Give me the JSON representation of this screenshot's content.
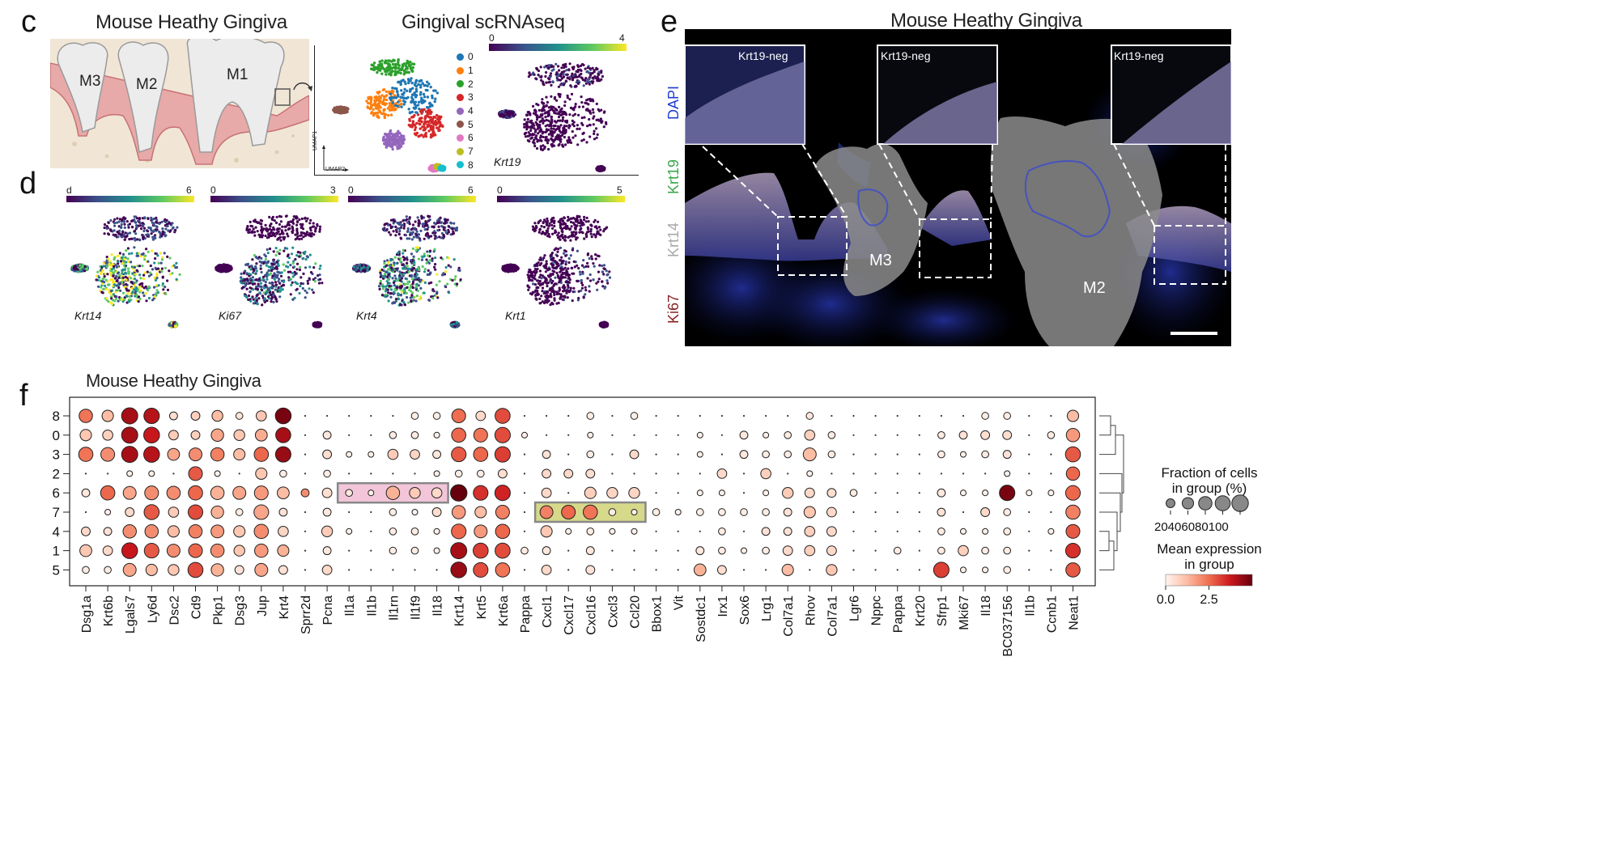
{
  "panels": {
    "c": {
      "letter": "c",
      "title_left": "Mouse Heathy Gingiva",
      "title_right": "Gingival scRNAseq",
      "tooth_labels": [
        "M3",
        "M2",
        "M1"
      ],
      "umap_axis": {
        "y": "UMAP1",
        "x": "UMAP2"
      },
      "clusters": [
        {
          "id": "0",
          "color": "#1f77b4"
        },
        {
          "id": "1",
          "color": "#ff7f0e"
        },
        {
          "id": "2",
          "color": "#2ca02c"
        },
        {
          "id": "3",
          "color": "#d62728"
        },
        {
          "id": "4",
          "color": "#9467bd"
        },
        {
          "id": "5",
          "color": "#8c564b"
        },
        {
          "id": "6",
          "color": "#e377c2"
        },
        {
          "id": "7",
          "color": "#bcbd22"
        },
        {
          "id": "8",
          "color": "#17becf"
        }
      ],
      "krt19": {
        "gene": "Krt19",
        "min": "0",
        "max": "4"
      }
    },
    "d": {
      "letter": "d",
      "plots": [
        {
          "gene": "Krt14",
          "min": "d",
          "max": "6"
        },
        {
          "gene": "Ki67",
          "min": "0",
          "max": "3"
        },
        {
          "gene": "Krt4",
          "min": "0",
          "max": "6"
        },
        {
          "gene": "Krt1",
          "min": "0",
          "max": "5"
        }
      ]
    },
    "e": {
      "letter": "e",
      "title": "Mouse Heathy Gingiva",
      "channels": [
        {
          "name": "DAPI",
          "color": "#1f3fd0"
        },
        {
          "name": "Krt19",
          "color": "#3aa84a"
        },
        {
          "name": "Krt14",
          "color": "#a8a8a8"
        },
        {
          "name": "Ki67",
          "color": "#8a1f1f"
        }
      ],
      "insets": [
        "Krt19-neg",
        "Krt19-neg",
        "Krt19-neg"
      ],
      "regions": [
        "M3",
        "M2"
      ]
    },
    "f": {
      "letter": "f",
      "title": "Mouse Heathy Gingiva"
    }
  },
  "chart_data": {
    "type": "dotplot",
    "title": "Mouse Heathy Gingiva",
    "rows": [
      "8",
      "0",
      "3",
      "2",
      "6",
      "7",
      "4",
      "1",
      "5"
    ],
    "genes": [
      "Dsg1a",
      "Krt6b",
      "Lgals7",
      "Ly6d",
      "Dsc2",
      "Cd9",
      "Pkp1",
      "Dsg3",
      "Jup",
      "Krt4",
      "Sprr2d",
      "Pcna",
      "Il1a",
      "Il1b",
      "Il1rn",
      "Il1f9",
      "Il18",
      "Krt14",
      "Krt5",
      "Krt6a",
      "Pappa",
      "Cxcl1",
      "Cxcl17",
      "Cxcl16",
      "Cxcl3",
      "Ccl20",
      "Bbox1",
      "Vit",
      "Sostdc1",
      "Irx1",
      "Sox6",
      "Lrg1",
      "Col7a1",
      "Rhov",
      "Col7a1",
      "Lgr6",
      "Nppc",
      "Pappa",
      "Krt20",
      "Sfrp1",
      "Mki67",
      "Il18",
      "BC037156",
      "Il1b",
      "Ccnb1",
      "Neat1"
    ],
    "fraction": [
      [
        60,
        40,
        95,
        85,
        15,
        20,
        35,
        10,
        30,
        90,
        0,
        0,
        0,
        0,
        0,
        10,
        10,
        65,
        25,
        80,
        0,
        0,
        0,
        10,
        0,
        10,
        0,
        0,
        0,
        0,
        0,
        0,
        0,
        10,
        0,
        0,
        0,
        0,
        0,
        0,
        0,
        10,
        10,
        0,
        0,
        40
      ],
      [
        40,
        30,
        95,
        90,
        25,
        20,
        50,
        35,
        45,
        80,
        0,
        15,
        0,
        0,
        10,
        10,
        5,
        70,
        65,
        85,
        5,
        0,
        0,
        5,
        0,
        0,
        0,
        0,
        5,
        0,
        15,
        5,
        10,
        30,
        10,
        0,
        0,
        0,
        0,
        10,
        15,
        20,
        20,
        0,
        10,
        60
      ],
      [
        70,
        65,
        95,
        90,
        45,
        55,
        60,
        40,
        70,
        85,
        0,
        20,
        5,
        5,
        30,
        25,
        15,
        75,
        70,
        85,
        0,
        15,
        0,
        10,
        0,
        20,
        0,
        0,
        5,
        0,
        15,
        10,
        10,
        55,
        10,
        0,
        0,
        0,
        0,
        10,
        5,
        10,
        15,
        0,
        0,
        80
      ],
      [
        0,
        0,
        5,
        5,
        0,
        65,
        5,
        0,
        40,
        10,
        0,
        10,
        0,
        0,
        0,
        0,
        5,
        10,
        10,
        20,
        0,
        20,
        20,
        20,
        0,
        0,
        0,
        0,
        0,
        25,
        0,
        30,
        0,
        5,
        0,
        0,
        0,
        0,
        0,
        0,
        0,
        0,
        5,
        0,
        0,
        60
      ],
      [
        15,
        70,
        55,
        65,
        60,
        70,
        60,
        55,
        65,
        45,
        15,
        25,
        10,
        5,
        60,
        35,
        30,
        100,
        75,
        85,
        0,
        25,
        0,
        40,
        35,
        35,
        0,
        0,
        5,
        5,
        0,
        5,
        35,
        25,
        20,
        10,
        0,
        0,
        0,
        15,
        5,
        5,
        85,
        5,
        5,
        75
      ],
      [
        0,
        5,
        20,
        80,
        30,
        75,
        50,
        10,
        75,
        15,
        0,
        15,
        0,
        0,
        10,
        5,
        20,
        60,
        40,
        65,
        0,
        55,
        65,
        70,
        10,
        5,
        10,
        5,
        10,
        10,
        10,
        10,
        15,
        40,
        25,
        0,
        0,
        0,
        0,
        15,
        0,
        20,
        10,
        0,
        0,
        70
      ],
      [
        20,
        15,
        60,
        60,
        40,
        60,
        55,
        40,
        70,
        30,
        0,
        35,
        5,
        0,
        10,
        10,
        5,
        75,
        55,
        70,
        0,
        40,
        5,
        10,
        5,
        5,
        0,
        0,
        0,
        10,
        0,
        15,
        15,
        30,
        25,
        0,
        0,
        0,
        0,
        10,
        5,
        5,
        10,
        0,
        5,
        65
      ],
      [
        45,
        25,
        90,
        75,
        55,
        65,
        60,
        35,
        60,
        40,
        0,
        15,
        0,
        0,
        10,
        10,
        5,
        95,
        80,
        80,
        10,
        15,
        0,
        15,
        0,
        0,
        0,
        0,
        15,
        10,
        5,
        10,
        25,
        30,
        25,
        0,
        0,
        10,
        0,
        10,
        30,
        10,
        10,
        0,
        0,
        75
      ],
      [
        10,
        10,
        55,
        40,
        35,
        80,
        50,
        20,
        55,
        20,
        0,
        25,
        0,
        0,
        0,
        0,
        0,
        90,
        75,
        70,
        0,
        25,
        0,
        20,
        0,
        0,
        0,
        0,
        45,
        20,
        0,
        0,
        40,
        0,
        35,
        0,
        0,
        0,
        0,
        85,
        5,
        5,
        10,
        0,
        0,
        70
      ]
    ],
    "expression": [
      [
        2.4,
        1.2,
        4.2,
        4.0,
        0.5,
        0.8,
        1.2,
        0.4,
        1.0,
        4.8,
        0,
        0,
        0,
        0,
        0,
        0.2,
        0.2,
        2.5,
        0.6,
        3.0,
        0,
        0,
        0,
        0.2,
        0,
        0.2,
        0,
        0,
        0,
        0,
        0,
        0,
        0,
        0.3,
        0,
        0,
        0,
        0,
        0,
        0,
        0,
        0.2,
        0.2,
        0,
        0,
        1.2
      ],
      [
        1.0,
        0.8,
        4.2,
        3.8,
        0.9,
        0.8,
        1.6,
        1.0,
        1.5,
        4.2,
        0,
        0.3,
        0,
        0,
        0.2,
        0.2,
        0.1,
        2.6,
        2.4,
        3.0,
        0.1,
        0,
        0,
        0.1,
        0,
        0,
        0,
        0,
        0.1,
        0,
        0.3,
        0.1,
        0.2,
        0.8,
        0.2,
        0,
        0,
        0,
        0,
        0.2,
        0.4,
        0.5,
        0.5,
        0,
        0.2,
        1.8
      ],
      [
        2.4,
        2.0,
        4.2,
        4.0,
        1.6,
        2.0,
        2.2,
        1.2,
        2.6,
        4.4,
        0,
        0.5,
        0.1,
        0.1,
        0.9,
        0.7,
        0.3,
        2.8,
        2.6,
        3.2,
        0,
        0.4,
        0,
        0.2,
        0,
        0.6,
        0,
        0,
        0.1,
        0,
        0.3,
        0.2,
        0.2,
        1.2,
        0.2,
        0,
        0,
        0,
        0,
        0.2,
        0.1,
        0.2,
        0.4,
        0,
        0,
        2.8
      ],
      [
        0,
        0,
        0.1,
        0.1,
        0,
        2.8,
        0.1,
        0,
        1.0,
        0.2,
        0,
        0.2,
        0,
        0,
        0,
        0,
        0.1,
        0.2,
        0.2,
        0.5,
        0,
        0.6,
        0.6,
        0.5,
        0,
        0,
        0,
        0,
        0,
        0.6,
        0,
        0.8,
        0,
        0.1,
        0,
        0,
        0,
        0,
        0,
        0,
        0,
        0,
        0.1,
        0,
        0,
        2.6
      ],
      [
        0.3,
        2.6,
        1.6,
        2.0,
        2.0,
        2.6,
        1.4,
        1.6,
        1.8,
        1.2,
        2.0,
        0.5,
        0.3,
        0.1,
        1.4,
        0.9,
        0.6,
        5.0,
        3.4,
        3.6,
        0,
        0.6,
        0,
        0.8,
        0.7,
        0.7,
        0,
        0,
        0.1,
        0.1,
        0,
        0.1,
        0.9,
        0.6,
        0.5,
        0.2,
        0,
        0,
        0,
        0.3,
        0.1,
        0.1,
        4.8,
        0.1,
        0.1,
        2.6
      ],
      [
        0,
        0.1,
        0.6,
        2.8,
        0.9,
        3.0,
        1.4,
        0.2,
        1.6,
        0.4,
        0,
        0.3,
        0,
        0,
        0.2,
        0.1,
        0.5,
        1.8,
        1.2,
        2.2,
        0,
        2.2,
        2.6,
        2.4,
        0.2,
        0.1,
        0.2,
        0.1,
        0.2,
        0.2,
        0.2,
        0.2,
        0.4,
        1.0,
        0.6,
        0,
        0,
        0,
        0,
        0.4,
        0,
        0.6,
        0.2,
        0,
        0,
        2.2
      ],
      [
        0.6,
        0.4,
        2.0,
        2.0,
        1.2,
        2.2,
        1.8,
        1.0,
        2.0,
        0.7,
        0,
        0.9,
        0.1,
        0,
        0.2,
        0.2,
        0.1,
        2.6,
        1.8,
        2.6,
        0,
        1.0,
        0.1,
        0.2,
        0.1,
        0.1,
        0,
        0,
        0,
        0.2,
        0,
        0.4,
        0.4,
        0.8,
        0.6,
        0,
        0,
        0,
        0,
        0.2,
        0.1,
        0.1,
        0.2,
        0,
        0.1,
        2.8
      ],
      [
        1.0,
        0.6,
        3.8,
        2.8,
        2.0,
        2.6,
        2.0,
        1.0,
        1.8,
        1.4,
        0,
        0.3,
        0,
        0,
        0.2,
        0.2,
        0.1,
        4.2,
        3.2,
        3.0,
        0.2,
        0.3,
        0,
        0.3,
        0,
        0,
        0,
        0,
        0.3,
        0.2,
        0.1,
        0.2,
        0.6,
        0.8,
        0.6,
        0,
        0,
        0.2,
        0,
        0.2,
        0.8,
        0.2,
        0.2,
        0,
        0,
        3.4
      ],
      [
        0.2,
        0.2,
        1.6,
        1.2,
        1.0,
        3.0,
        1.4,
        0.4,
        1.6,
        0.4,
        0,
        0.6,
        0,
        0,
        0,
        0,
        0,
        4.4,
        3.0,
        2.4,
        0,
        0.6,
        0,
        0.4,
        0,
        0,
        0,
        0,
        1.4,
        0.5,
        0,
        0,
        1.2,
        0,
        1.0,
        0,
        0,
        0,
        0,
        3.2,
        0.1,
        0.1,
        0.2,
        0,
        0,
        2.8
      ]
    ],
    "highlight_boxes": [
      {
        "row": "6",
        "from": "Il1a",
        "to": "Il18",
        "color": "#f2c6d8"
      },
      {
        "row": "7",
        "from": "Cxcl1",
        "to": "Ccl20",
        "color": "#d6d98a"
      }
    ],
    "size_legend": {
      "title": "Fraction of cells\nin group (%)",
      "ticks": [
        "20",
        "40",
        "60",
        "80",
        "100"
      ]
    },
    "color_legend": {
      "title": "Mean expression\nin group",
      "ticks": [
        "0.0",
        "2.5"
      ],
      "max": 5
    }
  }
}
